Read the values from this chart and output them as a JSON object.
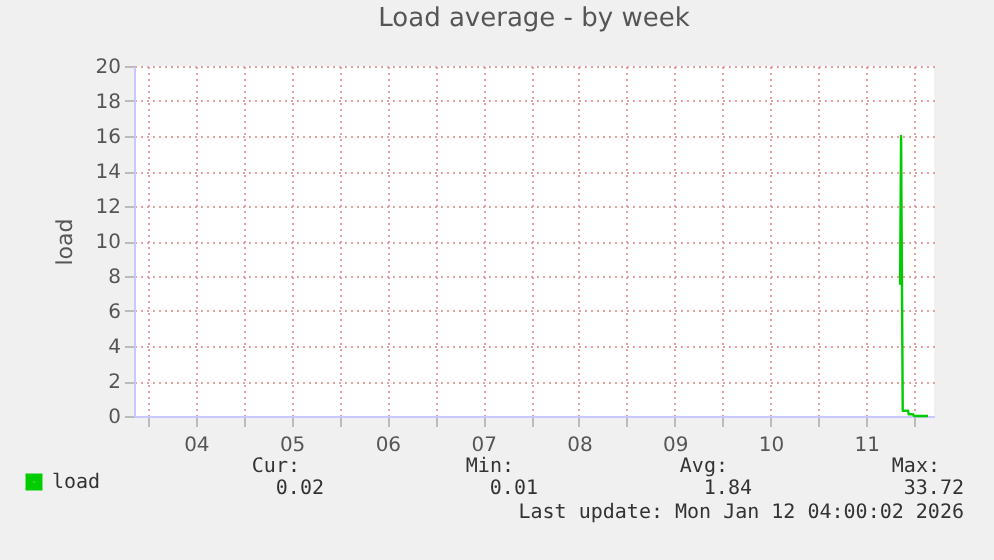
{
  "chart_data": {
    "type": "line",
    "title": "Load average - by week",
    "ylabel": "load",
    "series": [
      {
        "name": "load",
        "color": "#00cc00",
        "x": [
          "2026-01-11T20:30",
          "2026-01-11T20:45",
          "2026-01-11T21:10",
          "2026-01-11T22:30",
          "2026-01-11T22:40",
          "2026-01-11T23:45",
          "2026-01-12T00:00",
          "2026-01-12T03:30"
        ],
        "values": [
          7.5,
          16,
          0.3,
          0.3,
          0.1,
          0.1,
          0,
          0
        ]
      }
    ],
    "xlim": [
      "2026-01-03T20:30",
      "2026-01-12T05:00"
    ],
    "xticks": [
      {
        "value": "2026-01-04T00:00",
        "label": null
      },
      {
        "value": "2026-01-04T12:00",
        "label": "04"
      },
      {
        "value": "2026-01-05T00:00",
        "label": null
      },
      {
        "value": "2026-01-05T12:00",
        "label": "05"
      },
      {
        "value": "2026-01-06T00:00",
        "label": null
      },
      {
        "value": "2026-01-06T12:00",
        "label": "06"
      },
      {
        "value": "2026-01-07T00:00",
        "label": null
      },
      {
        "value": "2026-01-07T12:00",
        "label": "07"
      },
      {
        "value": "2026-01-08T00:00",
        "label": null
      },
      {
        "value": "2026-01-08T12:00",
        "label": "08"
      },
      {
        "value": "2026-01-09T00:00",
        "label": null
      },
      {
        "value": "2026-01-09T12:00",
        "label": "09"
      },
      {
        "value": "2026-01-10T00:00",
        "label": null
      },
      {
        "value": "2026-01-10T12:00",
        "label": "10"
      },
      {
        "value": "2026-01-11T00:00",
        "label": null
      },
      {
        "value": "2026-01-11T12:00",
        "label": "11"
      },
      {
        "value": "2026-01-12T00:00",
        "label": null
      }
    ],
    "ylim": [
      0,
      20
    ],
    "yticks": [
      0,
      2,
      4,
      6,
      8,
      10,
      12,
      14,
      16,
      18,
      20
    ],
    "grid": true,
    "legend": "bottom left",
    "annotations": [
      "Cur:",
      "0.02",
      "Min:",
      "0.01",
      "Avg:",
      "1.84",
      "Max:",
      "33.72",
      "Last update: Mon Jan 12 04:00:02 2026"
    ]
  }
}
